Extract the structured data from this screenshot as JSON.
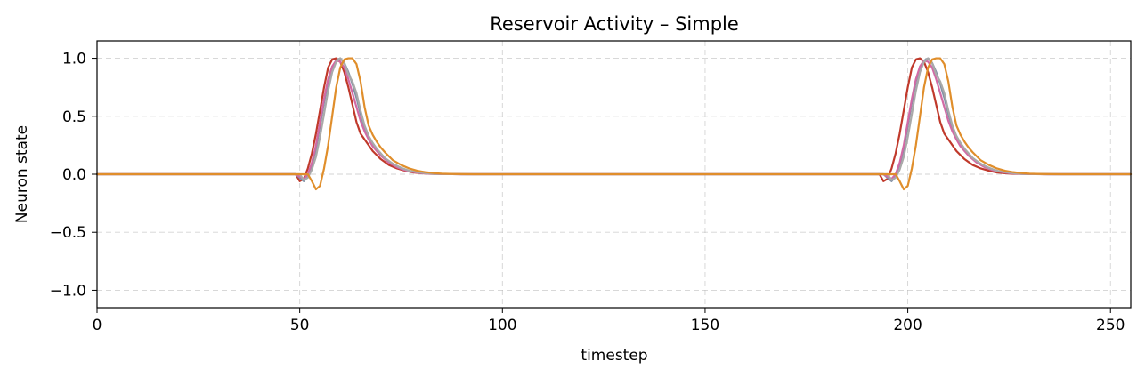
{
  "chart_data": {
    "type": "line",
    "title": "Reservoir Activity – Simple",
    "xlabel": "timestep",
    "ylabel": "Neuron state",
    "xlim": [
      0,
      255
    ],
    "ylim": [
      -1.15,
      1.15
    ],
    "xticks": [
      0,
      50,
      100,
      150,
      200,
      250
    ],
    "yticks": [
      1.0,
      0.5,
      0.0,
      -0.5,
      -1.0
    ],
    "xtick_labels": [
      "0",
      "50",
      "100",
      "150",
      "200",
      "250"
    ],
    "ytick_labels": [
      "1.0",
      "0.5",
      "0.0",
      "−0.5",
      "−1.0"
    ],
    "grid": true,
    "legend": "none",
    "series": [
      {
        "color": "#c0392b",
        "x": [
          0,
          49,
          50,
          51,
          52,
          53,
          54,
          55,
          56,
          57,
          58,
          59,
          60,
          61,
          62,
          63,
          64,
          65,
          66,
          67,
          68,
          70,
          72,
          74,
          76,
          78,
          80,
          82,
          85,
          90,
          100,
          193,
          194,
          195,
          196,
          197,
          198,
          199,
          200,
          201,
          202,
          203,
          204,
          205,
          206,
          207,
          208,
          209,
          210,
          211,
          212,
          214,
          216,
          218,
          220,
          222,
          224,
          226,
          229,
          234,
          255
        ],
        "y": [
          0,
          0,
          -0.06,
          -0.04,
          0.05,
          0.18,
          0.35,
          0.55,
          0.75,
          0.92,
          0.99,
          1.0,
          0.97,
          0.88,
          0.75,
          0.6,
          0.45,
          0.35,
          0.3,
          0.25,
          0.2,
          0.13,
          0.08,
          0.05,
          0.03,
          0.015,
          0.008,
          0.004,
          0.002,
          0,
          0,
          0,
          -0.06,
          -0.04,
          0.05,
          0.18,
          0.35,
          0.55,
          0.75,
          0.92,
          0.99,
          1.0,
          0.97,
          0.88,
          0.75,
          0.6,
          0.45,
          0.35,
          0.3,
          0.25,
          0.2,
          0.13,
          0.08,
          0.05,
          0.03,
          0.015,
          0.008,
          0.004,
          0.002,
          0,
          0
        ]
      },
      {
        "color": "#7f8fa6",
        "x": [
          0,
          49,
          50,
          51,
          52,
          53,
          54,
          55,
          56,
          57,
          58,
          59,
          60,
          61,
          62,
          63,
          64,
          65,
          66,
          67,
          68,
          70,
          72,
          74,
          76,
          78,
          80,
          82,
          85,
          90,
          100,
          194,
          195,
          196,
          197,
          198,
          199,
          200,
          201,
          202,
          203,
          204,
          205,
          206,
          207,
          208,
          209,
          210,
          211,
          212,
          213,
          215,
          217,
          219,
          221,
          223,
          225,
          227,
          230,
          235,
          255
        ],
        "y": [
          0,
          0,
          -0.03,
          -0.06,
          -0.02,
          0.08,
          0.22,
          0.42,
          0.62,
          0.8,
          0.92,
          0.98,
          1.0,
          0.96,
          0.88,
          0.78,
          0.66,
          0.52,
          0.4,
          0.32,
          0.26,
          0.17,
          0.11,
          0.07,
          0.04,
          0.02,
          0.01,
          0.005,
          0.002,
          0,
          0,
          0,
          -0.03,
          -0.06,
          -0.02,
          0.08,
          0.22,
          0.42,
          0.62,
          0.8,
          0.92,
          0.98,
          1.0,
          0.96,
          0.88,
          0.78,
          0.66,
          0.52,
          0.4,
          0.32,
          0.26,
          0.17,
          0.11,
          0.07,
          0.04,
          0.02,
          0.01,
          0.005,
          0.002,
          0,
          0
        ]
      },
      {
        "color": "#d16ba5",
        "x": [
          0,
          49,
          50,
          51,
          52,
          53,
          54,
          55,
          56,
          57,
          58,
          59,
          60,
          61,
          62,
          63,
          64,
          65,
          66,
          67,
          68,
          70,
          72,
          74,
          76,
          78,
          80,
          82,
          85,
          90,
          100,
          194,
          195,
          196,
          197,
          198,
          199,
          200,
          201,
          202,
          203,
          204,
          205,
          206,
          207,
          208,
          209,
          210,
          211,
          212,
          213,
          215,
          217,
          219,
          221,
          223,
          225,
          227,
          230,
          235,
          255
        ],
        "y": [
          0,
          0,
          -0.02,
          -0.04,
          0.0,
          0.1,
          0.25,
          0.45,
          0.65,
          0.82,
          0.93,
          0.98,
          0.97,
          0.92,
          0.82,
          0.7,
          0.58,
          0.46,
          0.37,
          0.3,
          0.24,
          0.16,
          0.1,
          0.06,
          0.035,
          0.02,
          0.01,
          0.005,
          0.002,
          0,
          0,
          0,
          -0.02,
          -0.04,
          0.0,
          0.1,
          0.25,
          0.45,
          0.65,
          0.82,
          0.93,
          0.98,
          0.97,
          0.92,
          0.82,
          0.7,
          0.58,
          0.46,
          0.37,
          0.3,
          0.24,
          0.16,
          0.1,
          0.06,
          0.035,
          0.02,
          0.01,
          0.005,
          0.002,
          0,
          0
        ]
      },
      {
        "color": "#a9a9a9",
        "x": [
          0,
          50,
          51,
          52,
          53,
          54,
          55,
          56,
          57,
          58,
          59,
          60,
          61,
          62,
          63,
          64,
          65,
          66,
          67,
          68,
          69,
          71,
          73,
          75,
          77,
          79,
          81,
          83,
          86,
          91,
          100,
          195,
          196,
          197,
          198,
          199,
          200,
          201,
          202,
          203,
          204,
          205,
          206,
          207,
          208,
          209,
          210,
          211,
          212,
          213,
          214,
          216,
          218,
          220,
          222,
          224,
          226,
          228,
          231,
          236,
          255
        ],
        "y": [
          0,
          0,
          -0.05,
          -0.03,
          0.04,
          0.15,
          0.32,
          0.52,
          0.72,
          0.88,
          0.97,
          1.0,
          0.96,
          0.86,
          0.8,
          0.7,
          0.55,
          0.42,
          0.33,
          0.27,
          0.22,
          0.14,
          0.09,
          0.055,
          0.03,
          0.018,
          0.009,
          0.004,
          0.002,
          0,
          0,
          0,
          -0.05,
          -0.03,
          0.04,
          0.15,
          0.32,
          0.52,
          0.72,
          0.88,
          0.97,
          1.0,
          0.96,
          0.86,
          0.8,
          0.7,
          0.55,
          0.42,
          0.33,
          0.27,
          0.22,
          0.14,
          0.09,
          0.055,
          0.03,
          0.018,
          0.009,
          0.004,
          0.002,
          0,
          0
        ]
      },
      {
        "color": "#e08e2b",
        "x": [
          0,
          52,
          53,
          54,
          55,
          56,
          57,
          58,
          59,
          60,
          61,
          62,
          63,
          64,
          65,
          66,
          67,
          68,
          69,
          70,
          71,
          73,
          75,
          77,
          79,
          81,
          83,
          85,
          88,
          93,
          100,
          197,
          198,
          199,
          200,
          201,
          202,
          203,
          204,
          205,
          206,
          207,
          208,
          209,
          210,
          211,
          212,
          213,
          214,
          215,
          216,
          218,
          220,
          222,
          224,
          226,
          228,
          230,
          233,
          238,
          255
        ],
        "y": [
          0,
          0,
          -0.06,
          -0.13,
          -0.1,
          0.05,
          0.25,
          0.5,
          0.75,
          0.92,
          0.99,
          1.0,
          1.0,
          0.95,
          0.8,
          0.58,
          0.42,
          0.34,
          0.28,
          0.23,
          0.19,
          0.12,
          0.08,
          0.05,
          0.03,
          0.018,
          0.01,
          0.005,
          0.002,
          0,
          0,
          0,
          -0.06,
          -0.13,
          -0.1,
          0.05,
          0.25,
          0.5,
          0.75,
          0.92,
          0.99,
          1.0,
          1.0,
          0.95,
          0.8,
          0.58,
          0.42,
          0.34,
          0.28,
          0.23,
          0.19,
          0.12,
          0.08,
          0.05,
          0.03,
          0.018,
          0.01,
          0.005,
          0.002,
          0,
          0
        ]
      }
    ]
  }
}
